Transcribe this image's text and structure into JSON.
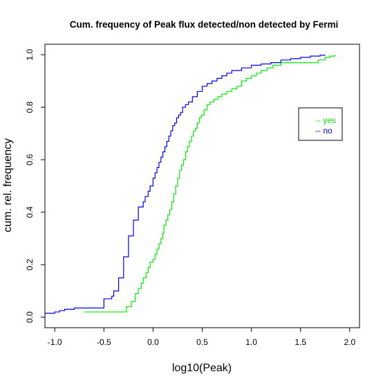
{
  "chart_data": {
    "type": "line",
    "step": true,
    "title": "Cum. frequency of Peak flux detected/non detected by Fermi",
    "xlabel": "log10(Peak)",
    "ylabel": "cum. rel. frequency",
    "xlim": [
      -1.1,
      2.1
    ],
    "ylim": [
      -0.04,
      1.04
    ],
    "xticks": [
      -1.0,
      -0.5,
      0.0,
      0.5,
      1.0,
      1.5,
      2.0
    ],
    "xtick_labels": [
      "-1.0",
      "-0.5",
      "0.0",
      "0.5",
      "1.0",
      "1.5",
      "2.0"
    ],
    "yticks": [
      0.0,
      0.2,
      0.4,
      0.6,
      0.8,
      1.0
    ],
    "ytick_labels": [
      "0.0",
      "0.2",
      "0.4",
      "0.6",
      "0.8",
      "1.0"
    ],
    "grid": false,
    "legend_position": "right",
    "series": [
      {
        "name": "yes",
        "legend_label": "-- yes",
        "color": "#00ee00",
        "x": [
          -0.7,
          -0.32,
          -0.27,
          -0.22,
          -0.18,
          -0.15,
          -0.12,
          -0.1,
          -0.07,
          -0.05,
          -0.03,
          0.0,
          0.02,
          0.04,
          0.06,
          0.08,
          0.1,
          0.11,
          0.13,
          0.15,
          0.17,
          0.19,
          0.21,
          0.23,
          0.25,
          0.27,
          0.29,
          0.31,
          0.33,
          0.35,
          0.37,
          0.39,
          0.41,
          0.43,
          0.45,
          0.47,
          0.49,
          0.52,
          0.55,
          0.58,
          0.62,
          0.66,
          0.7,
          0.75,
          0.8,
          0.85,
          0.9,
          0.95,
          1.0,
          1.05,
          1.1,
          1.16,
          1.22,
          1.3,
          1.4,
          1.5,
          1.6,
          1.68,
          1.75,
          1.8,
          1.85
        ],
        "y": [
          0.02,
          0.02,
          0.04,
          0.06,
          0.09,
          0.11,
          0.13,
          0.15,
          0.17,
          0.19,
          0.21,
          0.22,
          0.24,
          0.26,
          0.28,
          0.3,
          0.32,
          0.35,
          0.37,
          0.39,
          0.41,
          0.44,
          0.47,
          0.5,
          0.53,
          0.56,
          0.58,
          0.6,
          0.63,
          0.65,
          0.67,
          0.69,
          0.71,
          0.72,
          0.74,
          0.76,
          0.77,
          0.79,
          0.81,
          0.82,
          0.83,
          0.84,
          0.85,
          0.86,
          0.87,
          0.88,
          0.9,
          0.91,
          0.92,
          0.93,
          0.94,
          0.95,
          0.96,
          0.97,
          0.97,
          0.97,
          0.97,
          0.98,
          0.99,
          0.995,
          1.0
        ]
      },
      {
        "name": "no",
        "legend_label": "-- no",
        "color": "#0000ff",
        "x": [
          -1.1,
          -1.0,
          -0.95,
          -0.9,
          -0.8,
          -0.5,
          -0.42,
          -0.4,
          -0.35,
          -0.3,
          -0.25,
          -0.2,
          -0.15,
          -0.1,
          -0.08,
          -0.05,
          -0.03,
          0.0,
          0.02,
          0.04,
          0.06,
          0.08,
          0.1,
          0.12,
          0.14,
          0.16,
          0.18,
          0.2,
          0.22,
          0.24,
          0.26,
          0.28,
          0.3,
          0.33,
          0.36,
          0.4,
          0.45,
          0.5,
          0.55,
          0.6,
          0.65,
          0.7,
          0.75,
          0.8,
          0.9,
          1.0,
          1.1,
          1.2,
          1.3,
          1.4,
          1.5,
          1.6,
          1.7,
          1.75
        ],
        "y": [
          0.015,
          0.02,
          0.025,
          0.03,
          0.035,
          0.07,
          0.08,
          0.1,
          0.15,
          0.23,
          0.31,
          0.37,
          0.42,
          0.44,
          0.46,
          0.48,
          0.5,
          0.53,
          0.55,
          0.57,
          0.59,
          0.61,
          0.63,
          0.65,
          0.67,
          0.69,
          0.71,
          0.73,
          0.74,
          0.76,
          0.77,
          0.78,
          0.8,
          0.81,
          0.82,
          0.84,
          0.86,
          0.88,
          0.89,
          0.9,
          0.91,
          0.92,
          0.93,
          0.94,
          0.95,
          0.96,
          0.965,
          0.97,
          0.98,
          0.985,
          0.99,
          0.995,
          0.998,
          1.0
        ]
      }
    ]
  }
}
